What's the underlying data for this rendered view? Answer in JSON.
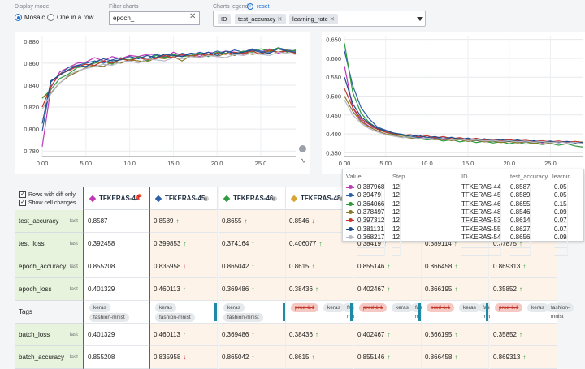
{
  "toolbar": {
    "display_mode_label": "Display mode",
    "mode_mosaic": "Mosaic",
    "mode_one_in_row": "One in a row",
    "filter_label": "Filter charts",
    "filter_value": "epoch_",
    "legend_label": "Charts legend",
    "reset_label": "reset",
    "legend_chips": [
      "ID",
      "test_accuracy",
      "learning_rate"
    ]
  },
  "left_chart": {
    "y_ticks": [
      "0.880",
      "0.860",
      "0.840",
      "0.820",
      "0.800",
      "0.780"
    ],
    "x_ticks": [
      "0.00",
      "5.00",
      "10.0",
      "15.0",
      "20.0",
      "25.0"
    ]
  },
  "right_chart": {
    "y_ticks": [
      "0.650",
      "0.600",
      "0.550",
      "0.500",
      "0.450",
      "0.400",
      "0.350"
    ],
    "x_ticks": [
      "0.00",
      "5.00",
      "10.0",
      "15.0",
      "20.0",
      "25.0"
    ]
  },
  "chart_data": [
    {
      "type": "line",
      "title": "",
      "xlabel": "",
      "ylabel": "",
      "ylim": [
        0.775,
        0.885
      ],
      "xlim": [
        0,
        29
      ],
      "series": [
        {
          "color": "#c03ab5",
          "values": [
            0.784,
            0.838,
            0.852,
            0.856,
            0.86,
            0.861,
            0.865,
            0.862,
            0.866,
            0.864,
            0.867,
            0.866,
            0.868,
            0.868,
            0.865,
            0.87,
            0.867,
            0.869,
            0.866,
            0.87,
            0.869,
            0.871,
            0.87,
            0.868,
            0.872,
            0.87,
            0.873,
            0.869,
            0.871,
            0.87
          ]
        },
        {
          "color": "#2e5fa8",
          "values": [
            0.798,
            0.843,
            0.85,
            0.856,
            0.858,
            0.86,
            0.862,
            0.86,
            0.863,
            0.865,
            0.862,
            0.866,
            0.864,
            0.868,
            0.866,
            0.865,
            0.869,
            0.867,
            0.87,
            0.868,
            0.871,
            0.869,
            0.872,
            0.87,
            0.873,
            0.871,
            0.87,
            0.874,
            0.872,
            0.871
          ]
        },
        {
          "color": "#2e9a3c",
          "values": [
            0.828,
            0.836,
            0.846,
            0.85,
            0.856,
            0.857,
            0.86,
            0.862,
            0.859,
            0.864,
            0.863,
            0.866,
            0.862,
            0.867,
            0.865,
            0.868,
            0.866,
            0.867,
            0.869,
            0.866,
            0.87,
            0.869,
            0.868,
            0.871,
            0.87,
            0.873,
            0.871,
            0.874,
            0.87,
            0.872
          ]
        },
        {
          "color": "#8a7a2a",
          "values": [
            0.829,
            0.833,
            0.842,
            0.848,
            0.852,
            0.856,
            0.858,
            0.857,
            0.861,
            0.86,
            0.863,
            0.862,
            0.861,
            0.865,
            0.864,
            0.866,
            0.862,
            0.867,
            0.865,
            0.868,
            0.866,
            0.869,
            0.867,
            0.87,
            0.868,
            0.869,
            0.871,
            0.87,
            0.872,
            0.869
          ]
        },
        {
          "color": "#c0392b",
          "values": [
            0.82,
            0.839,
            0.85,
            0.853,
            0.857,
            0.859,
            0.858,
            0.862,
            0.86,
            0.864,
            0.862,
            0.865,
            0.863,
            0.864,
            0.867,
            0.865,
            0.868,
            0.866,
            0.868,
            0.867,
            0.869,
            0.868,
            0.87,
            0.869,
            0.871,
            0.868,
            0.872,
            0.87,
            0.871,
            0.869
          ]
        },
        {
          "color": "#1f4e8c",
          "values": [
            0.805,
            0.844,
            0.849,
            0.854,
            0.858,
            0.857,
            0.861,
            0.864,
            0.862,
            0.863,
            0.866,
            0.864,
            0.867,
            0.865,
            0.868,
            0.867,
            0.866,
            0.869,
            0.868,
            0.87,
            0.867,
            0.871,
            0.869,
            0.87,
            0.872,
            0.87,
            0.869,
            0.873,
            0.871,
            0.87
          ]
        },
        {
          "color": "#b8b8c8",
          "values": [
            0.818,
            0.832,
            0.842,
            0.849,
            0.853,
            0.855,
            0.857,
            0.859,
            0.858,
            0.861,
            0.862,
            0.86,
            0.864,
            0.863,
            0.862,
            0.865,
            0.864,
            0.866,
            0.865,
            0.867,
            0.866,
            0.865,
            0.868,
            0.867,
            0.869,
            0.868,
            0.867,
            0.87,
            0.869,
            0.868
          ]
        }
      ]
    },
    {
      "type": "line",
      "title": "",
      "xlabel": "",
      "ylabel": "",
      "ylim": [
        0.34,
        0.66
      ],
      "xlim": [
        0,
        29
      ],
      "series": [
        {
          "color": "#c03ab5",
          "values": [
            0.58,
            0.468,
            0.436,
            0.42,
            0.413,
            0.404,
            0.399,
            0.397,
            0.39,
            0.392,
            0.386,
            0.391,
            0.384,
            0.386,
            0.387,
            0.381,
            0.385,
            0.379,
            0.383,
            0.378,
            0.382,
            0.377,
            0.379,
            0.381,
            0.376,
            0.379,
            0.377,
            0.38,
            0.378,
            0.375
          ]
        },
        {
          "color": "#2e5fa8",
          "values": [
            0.62,
            0.528,
            0.47,
            0.44,
            0.418,
            0.41,
            0.402,
            0.398,
            0.394,
            0.39,
            0.395,
            0.388,
            0.392,
            0.386,
            0.389,
            0.384,
            0.388,
            0.383,
            0.386,
            0.381,
            0.384,
            0.38,
            0.383,
            0.379,
            0.382,
            0.378,
            0.381,
            0.377,
            0.379,
            0.375
          ]
        },
        {
          "color": "#2e9a3c",
          "values": [
            0.64,
            0.51,
            0.455,
            0.43,
            0.415,
            0.405,
            0.398,
            0.396,
            0.391,
            0.388,
            0.384,
            0.387,
            0.381,
            0.385,
            0.379,
            0.383,
            0.377,
            0.381,
            0.376,
            0.379,
            0.374,
            0.378,
            0.373,
            0.376,
            0.372,
            0.375,
            0.37,
            0.374,
            0.368,
            0.365
          ]
        },
        {
          "color": "#8a7a2a",
          "values": [
            0.5,
            0.46,
            0.432,
            0.418,
            0.408,
            0.4,
            0.396,
            0.392,
            0.389,
            0.386,
            0.388,
            0.384,
            0.386,
            0.382,
            0.385,
            0.38,
            0.383,
            0.379,
            0.381,
            0.377,
            0.38,
            0.376,
            0.379,
            0.375,
            0.378,
            0.376,
            0.379,
            0.377,
            0.38,
            0.378
          ]
        },
        {
          "color": "#c0392b",
          "values": [
            0.52,
            0.47,
            0.44,
            0.425,
            0.412,
            0.405,
            0.4,
            0.396,
            0.398,
            0.392,
            0.395,
            0.389,
            0.393,
            0.387,
            0.39,
            0.385,
            0.388,
            0.384,
            0.386,
            0.382,
            0.385,
            0.381,
            0.383,
            0.38,
            0.382,
            0.379,
            0.381,
            0.378,
            0.38,
            0.377
          ]
        },
        {
          "color": "#1f4e8c",
          "values": [
            0.55,
            0.48,
            0.445,
            0.428,
            0.415,
            0.408,
            0.402,
            0.399,
            0.393,
            0.396,
            0.39,
            0.393,
            0.387,
            0.391,
            0.385,
            0.389,
            0.383,
            0.387,
            0.381,
            0.385,
            0.38,
            0.384,
            0.379,
            0.382,
            0.378,
            0.381,
            0.377,
            0.38,
            0.376,
            0.378
          ]
        },
        {
          "color": "#b8b8c8",
          "values": [
            0.49,
            0.45,
            0.428,
            0.414,
            0.405,
            0.398,
            0.394,
            0.39,
            0.392,
            0.387,
            0.389,
            0.385,
            0.388,
            0.384,
            0.386,
            0.382,
            0.385,
            0.381,
            0.383,
            0.38,
            0.382,
            0.379,
            0.381,
            0.378,
            0.38,
            0.377,
            0.379,
            0.376,
            0.378,
            0.374
          ]
        }
      ]
    }
  ],
  "tooltip": {
    "headers": [
      "Value",
      "Step",
      "ID",
      "test_accuracy",
      "learnin..."
    ],
    "rows": [
      {
        "color": "#c03ab5",
        "value": "0.387968",
        "step": "12",
        "id": "TFKERAS-44",
        "acc": "0.8587",
        "lr": "0.05"
      },
      {
        "color": "#2e5fa8",
        "value": "0.39479",
        "step": "12",
        "id": "TFKERAS-45",
        "acc": "0.8589",
        "lr": "0.05"
      },
      {
        "color": "#2e9a3c",
        "value": "0.364066",
        "step": "12",
        "id": "TFKERAS-46",
        "acc": "0.8655",
        "lr": "0.15"
      },
      {
        "color": "#8a7a2a",
        "value": "0.378497",
        "step": "12",
        "id": "TFKERAS-48",
        "acc": "0.8546",
        "lr": "0.09"
      },
      {
        "color": "#c0392b",
        "value": "0.397312",
        "step": "12",
        "id": "TFKERAS-53",
        "acc": "0.8614",
        "lr": "0.07"
      },
      {
        "color": "#1f4e8c",
        "value": "0.381131",
        "step": "12",
        "id": "TFKERAS-55",
        "acc": "0.8627",
        "lr": "0.07"
      },
      {
        "color": "#b8b8c8",
        "value": "0.368217",
        "step": "12",
        "id": "TFKERAS-54",
        "acc": "0.8656",
        "lr": "0.09"
      }
    ]
  },
  "table": {
    "rows_with_diff": "Rows with diff only",
    "show_cell_changes": "Show cell changes",
    "columns": [
      {
        "name": "TFKERAS-44",
        "color": "#c03ab5"
      },
      {
        "name": "TFKERAS-45",
        "color": "#2e5fa8"
      },
      {
        "name": "TFKERAS-46",
        "color": "#2e9a3c"
      },
      {
        "name": "TFKERAS-48",
        "color": "#d6a531"
      }
    ],
    "last_label": "last",
    "rows": [
      {
        "name": "test_accuracy",
        "cells": [
          [
            "0.8587",
            ""
          ],
          [
            "0.8589",
            "up"
          ],
          [
            "0.8655",
            "up"
          ],
          [
            "0.8546",
            "down"
          ]
        ]
      },
      {
        "name": "test_loss",
        "cells": [
          [
            "0.392458",
            ""
          ],
          [
            "0.399853",
            "up"
          ],
          [
            "0.374164",
            "up"
          ],
          [
            "0.406077",
            "up"
          ],
          [
            "0.38419",
            "up"
          ],
          [
            "0.389114",
            "up"
          ],
          [
            "0.37875",
            "up"
          ]
        ]
      },
      {
        "name": "epoch_accuracy",
        "cells": [
          [
            "0.855208",
            ""
          ],
          [
            "0.835958",
            "down"
          ],
          [
            "0.865042",
            "up"
          ],
          [
            "0.8615",
            "up"
          ],
          [
            "0.855146",
            "up"
          ],
          [
            "0.866458",
            "up"
          ],
          [
            "0.869313",
            "up"
          ]
        ]
      },
      {
        "name": "epoch_loss",
        "cells": [
          [
            "0.401329",
            ""
          ],
          [
            "0.460113",
            "up"
          ],
          [
            "0.369486",
            "up"
          ],
          [
            "0.38436",
            "up"
          ],
          [
            "0.402467",
            "up"
          ],
          [
            "0.366195",
            "up"
          ],
          [
            "0.35852",
            "up"
          ]
        ]
      },
      {
        "name": "Tags",
        "tags": true
      },
      {
        "name": "batch_loss",
        "cells": [
          [
            "0.401329",
            ""
          ],
          [
            "0.460113",
            "up"
          ],
          [
            "0.369486",
            "up"
          ],
          [
            "0.38436",
            "up"
          ],
          [
            "0.402467",
            "up"
          ],
          [
            "0.366195",
            "up"
          ],
          [
            "0.35852",
            "up"
          ]
        ]
      },
      {
        "name": "batch_accuracy",
        "cells": [
          [
            "0.855208",
            ""
          ],
          [
            "0.835958",
            "down"
          ],
          [
            "0.865042",
            "up"
          ],
          [
            "0.8615",
            "up"
          ],
          [
            "0.855146",
            "up"
          ],
          [
            "0.866458",
            "up"
          ],
          [
            "0.869313",
            "up"
          ]
        ]
      }
    ],
    "tags": {
      "keras": "keras",
      "fashion": "fashion-mnist",
      "prod": "prod-1.1"
    }
  }
}
